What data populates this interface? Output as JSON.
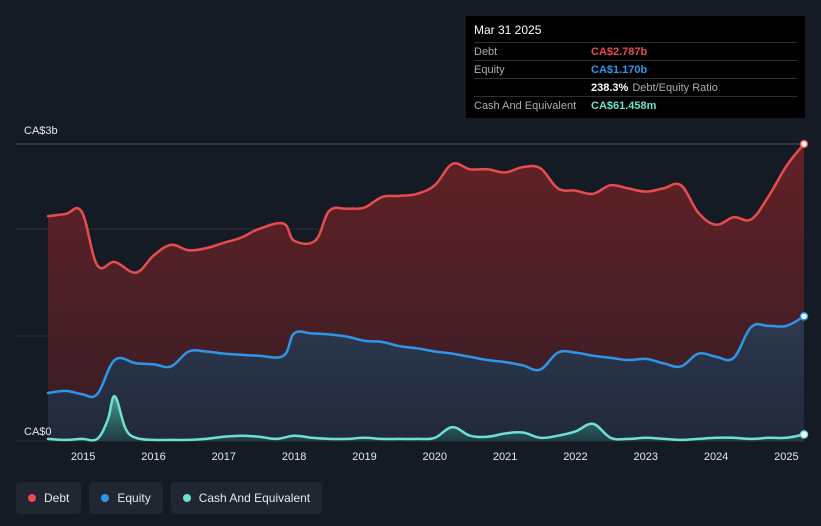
{
  "tooltip": {
    "date": "Mar 31 2025",
    "rows": [
      {
        "label": "Debt",
        "value": "CA$2.787b",
        "color": "#e84c4f"
      },
      {
        "label": "Equity",
        "value": "CA$1.170b",
        "color": "#2e96e8"
      },
      {
        "label": "",
        "value": "238.3%",
        "suffix": "Debt/Equity Ratio",
        "color": "#ffffff"
      },
      {
        "label": "Cash And Equivalent",
        "value": "CA$61.458m",
        "color": "#6fe0cf"
      }
    ]
  },
  "legend": [
    {
      "label": "Debt",
      "color": "#e84c4f"
    },
    {
      "label": "Equity",
      "color": "#2e96e8"
    },
    {
      "label": "Cash And Equivalent",
      "color": "#6fe0cf"
    }
  ],
  "chart_data": {
    "type": "area",
    "title": "",
    "xlabel": "",
    "ylabel": "",
    "y_tick_labels": {
      "top": "CA$3b",
      "bottom": "CA$0"
    },
    "ylim": [
      0,
      2.787
    ],
    "xlim": [
      2014.5,
      2025.25
    ],
    "x_ticks": [
      2015,
      2016,
      2017,
      2018,
      2019,
      2020,
      2021,
      2022,
      2023,
      2024,
      2025
    ],
    "grid": true,
    "series": [
      {
        "name": "Debt",
        "color": "#e84c4f",
        "points": [
          [
            2014.5,
            2.11
          ],
          [
            2014.75,
            2.13
          ],
          [
            2014.98,
            2.15
          ],
          [
            2015.2,
            1.65
          ],
          [
            2015.45,
            1.68
          ],
          [
            2015.75,
            1.58
          ],
          [
            2016.0,
            1.74
          ],
          [
            2016.25,
            1.84
          ],
          [
            2016.5,
            1.79
          ],
          [
            2016.75,
            1.81
          ],
          [
            2017.0,
            1.86
          ],
          [
            2017.25,
            1.91
          ],
          [
            2017.5,
            1.99
          ],
          [
            2017.85,
            2.04
          ],
          [
            2018.0,
            1.88
          ],
          [
            2018.3,
            1.88
          ],
          [
            2018.5,
            2.16
          ],
          [
            2018.75,
            2.18
          ],
          [
            2019.0,
            2.19
          ],
          [
            2019.25,
            2.29
          ],
          [
            2019.5,
            2.3
          ],
          [
            2019.75,
            2.32
          ],
          [
            2020.0,
            2.4
          ],
          [
            2020.25,
            2.6
          ],
          [
            2020.5,
            2.55
          ],
          [
            2020.75,
            2.55
          ],
          [
            2021.0,
            2.52
          ],
          [
            2021.25,
            2.57
          ],
          [
            2021.5,
            2.56
          ],
          [
            2021.75,
            2.37
          ],
          [
            2022.0,
            2.35
          ],
          [
            2022.25,
            2.32
          ],
          [
            2022.5,
            2.4
          ],
          [
            2022.75,
            2.37
          ],
          [
            2023.0,
            2.34
          ],
          [
            2023.25,
            2.37
          ],
          [
            2023.5,
            2.4
          ],
          [
            2023.75,
            2.14
          ],
          [
            2024.0,
            2.03
          ],
          [
            2024.25,
            2.1
          ],
          [
            2024.5,
            2.08
          ],
          [
            2024.75,
            2.3
          ],
          [
            2025.0,
            2.58
          ],
          [
            2025.25,
            2.787
          ]
        ]
      },
      {
        "name": "Equity",
        "color": "#2e96e8",
        "points": [
          [
            2014.5,
            0.45
          ],
          [
            2014.75,
            0.47
          ],
          [
            2014.98,
            0.44
          ],
          [
            2015.2,
            0.44
          ],
          [
            2015.45,
            0.76
          ],
          [
            2015.75,
            0.73
          ],
          [
            2016.0,
            0.72
          ],
          [
            2016.25,
            0.7
          ],
          [
            2016.5,
            0.84
          ],
          [
            2016.75,
            0.84
          ],
          [
            2017.0,
            0.82
          ],
          [
            2017.25,
            0.81
          ],
          [
            2017.5,
            0.8
          ],
          [
            2017.85,
            0.8
          ],
          [
            2018.0,
            1.01
          ],
          [
            2018.25,
            1.01
          ],
          [
            2018.5,
            1.0
          ],
          [
            2018.75,
            0.98
          ],
          [
            2019.0,
            0.94
          ],
          [
            2019.25,
            0.93
          ],
          [
            2019.5,
            0.89
          ],
          [
            2019.75,
            0.87
          ],
          [
            2020.0,
            0.84
          ],
          [
            2020.25,
            0.82
          ],
          [
            2020.5,
            0.79
          ],
          [
            2020.75,
            0.76
          ],
          [
            2021.0,
            0.74
          ],
          [
            2021.25,
            0.71
          ],
          [
            2021.5,
            0.67
          ],
          [
            2021.75,
            0.83
          ],
          [
            2022.0,
            0.83
          ],
          [
            2022.25,
            0.8
          ],
          [
            2022.5,
            0.78
          ],
          [
            2022.75,
            0.76
          ],
          [
            2023.0,
            0.77
          ],
          [
            2023.25,
            0.73
          ],
          [
            2023.5,
            0.7
          ],
          [
            2023.75,
            0.82
          ],
          [
            2024.0,
            0.79
          ],
          [
            2024.25,
            0.78
          ],
          [
            2024.5,
            1.07
          ],
          [
            2024.75,
            1.08
          ],
          [
            2025.0,
            1.08
          ],
          [
            2025.25,
            1.17
          ]
        ]
      },
      {
        "name": "Cash And Equivalent",
        "color": "#6fe0cf",
        "points": [
          [
            2014.5,
            0.02
          ],
          [
            2014.75,
            0.01
          ],
          [
            2014.98,
            0.02
          ],
          [
            2015.2,
            0.02
          ],
          [
            2015.35,
            0.2
          ],
          [
            2015.45,
            0.42
          ],
          [
            2015.6,
            0.12
          ],
          [
            2015.75,
            0.03
          ],
          [
            2016.0,
            0.01
          ],
          [
            2016.25,
            0.01
          ],
          [
            2016.5,
            0.01
          ],
          [
            2016.75,
            0.02
          ],
          [
            2017.0,
            0.04
          ],
          [
            2017.25,
            0.05
          ],
          [
            2017.5,
            0.04
          ],
          [
            2017.75,
            0.02
          ],
          [
            2018.0,
            0.05
          ],
          [
            2018.25,
            0.03
          ],
          [
            2018.5,
            0.02
          ],
          [
            2018.75,
            0.02
          ],
          [
            2019.0,
            0.03
          ],
          [
            2019.25,
            0.02
          ],
          [
            2019.5,
            0.02
          ],
          [
            2019.75,
            0.02
          ],
          [
            2020.0,
            0.03
          ],
          [
            2020.25,
            0.13
          ],
          [
            2020.5,
            0.05
          ],
          [
            2020.75,
            0.04
          ],
          [
            2021.0,
            0.07
          ],
          [
            2021.25,
            0.08
          ],
          [
            2021.5,
            0.03
          ],
          [
            2021.75,
            0.05
          ],
          [
            2022.0,
            0.09
          ],
          [
            2022.25,
            0.16
          ],
          [
            2022.5,
            0.03
          ],
          [
            2022.75,
            0.02
          ],
          [
            2023.0,
            0.03
          ],
          [
            2023.25,
            0.02
          ],
          [
            2023.5,
            0.01
          ],
          [
            2023.75,
            0.02
          ],
          [
            2024.0,
            0.03
          ],
          [
            2024.25,
            0.03
          ],
          [
            2024.5,
            0.02
          ],
          [
            2024.75,
            0.03
          ],
          [
            2025.0,
            0.03
          ],
          [
            2025.25,
            0.061
          ]
        ]
      }
    ]
  }
}
